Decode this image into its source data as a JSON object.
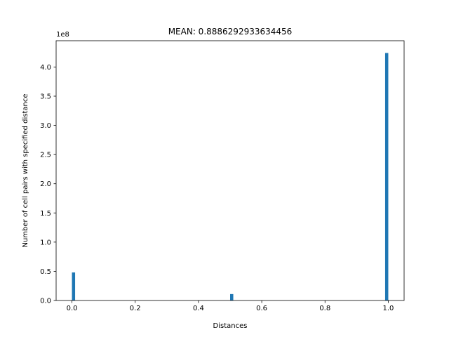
{
  "chart_data": {
    "type": "bar",
    "title": "MEAN: 0.8886292933634456",
    "xlabel": "Distances",
    "ylabel": "Number of cell pairs with specified distance",
    "offset_text": "1e8",
    "xlim": [
      -0.05,
      1.05
    ],
    "ylim": [
      0,
      4.45
    ],
    "x_ticks": [
      0.0,
      0.2,
      0.4,
      0.6,
      0.8,
      1.0
    ],
    "x_tick_labels": [
      "0.0",
      "0.2",
      "0.4",
      "0.6",
      "0.8",
      "1.0"
    ],
    "y_ticks": [
      0.0,
      0.5,
      1.0,
      1.5,
      2.0,
      2.5,
      3.0,
      3.5,
      4.0
    ],
    "y_tick_labels": [
      "0.0",
      "0.5",
      "1.0",
      "1.5",
      "2.0",
      "2.5",
      "3.0",
      "3.5",
      "4.0"
    ],
    "bin_width": 0.01,
    "bars": [
      {
        "x": 0.0,
        "value": 0.48
      },
      {
        "x": 0.5,
        "value": 0.11
      },
      {
        "x": 0.99,
        "value": 4.24
      }
    ],
    "bar_color": "#1f77b4",
    "grid": false,
    "legend": "none"
  }
}
